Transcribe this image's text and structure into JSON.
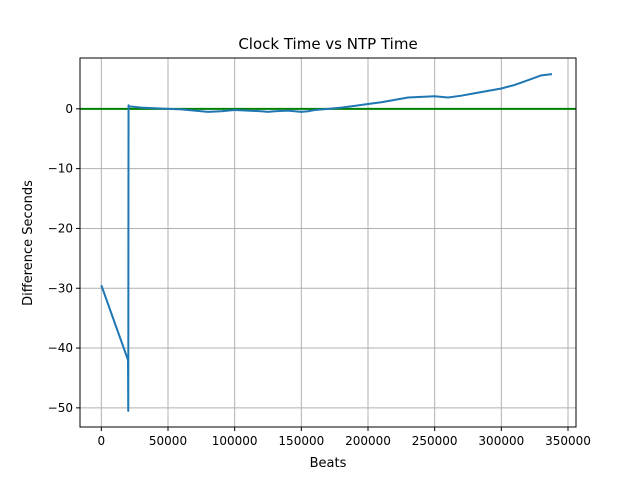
{
  "chart_data": {
    "type": "line",
    "title": "Clock Time vs NTP Time",
    "xlabel": "Beats",
    "ylabel": "Difference Seconds",
    "xlim": [
      -16000,
      356000
    ],
    "ylim": [
      -53.2,
      8.5
    ],
    "xticks": [
      0,
      50000,
      100000,
      150000,
      200000,
      250000,
      300000,
      350000
    ],
    "xtick_labels": [
      "0",
      "50000",
      "100000",
      "150000",
      "200000",
      "250000",
      "300000",
      "350000"
    ],
    "yticks": [
      -50,
      -40,
      -30,
      -20,
      -10,
      0
    ],
    "ytick_labels": [
      "−50",
      "−40",
      "−30",
      "−20",
      "−10",
      "0"
    ],
    "grid": true,
    "reference_line": {
      "y": 0,
      "color": "#008000"
    },
    "series": [
      {
        "color": "#1f77b4",
        "x": [
          0,
          20000,
          20200,
          20400,
          20600,
          22000,
          30000,
          40000,
          50000,
          60000,
          70000,
          80000,
          90000,
          100000,
          110000,
          120000,
          125000,
          130000,
          140000,
          150000,
          155000,
          160000,
          170000,
          180000,
          190000,
          200000,
          210000,
          220000,
          230000,
          240000,
          250000,
          255000,
          260000,
          270000,
          280000,
          290000,
          300000,
          310000,
          320000,
          330000,
          338000
        ],
        "y": [
          -29.5,
          -42.0,
          -50.5,
          0.6,
          0.4,
          0.4,
          0.2,
          0.1,
          0.0,
          -0.1,
          -0.3,
          -0.5,
          -0.4,
          -0.2,
          -0.3,
          -0.4,
          -0.5,
          -0.4,
          -0.3,
          -0.5,
          -0.4,
          -0.2,
          0.0,
          0.2,
          0.5,
          0.8,
          1.1,
          1.5,
          1.9,
          2.0,
          2.1,
          2.0,
          1.9,
          2.2,
          2.6,
          3.0,
          3.4,
          4.0,
          4.8,
          5.6,
          5.8
        ]
      }
    ],
    "colors": {
      "line": "#1f77b4",
      "reference": "#008000",
      "grid": "#b0b0b0"
    }
  }
}
